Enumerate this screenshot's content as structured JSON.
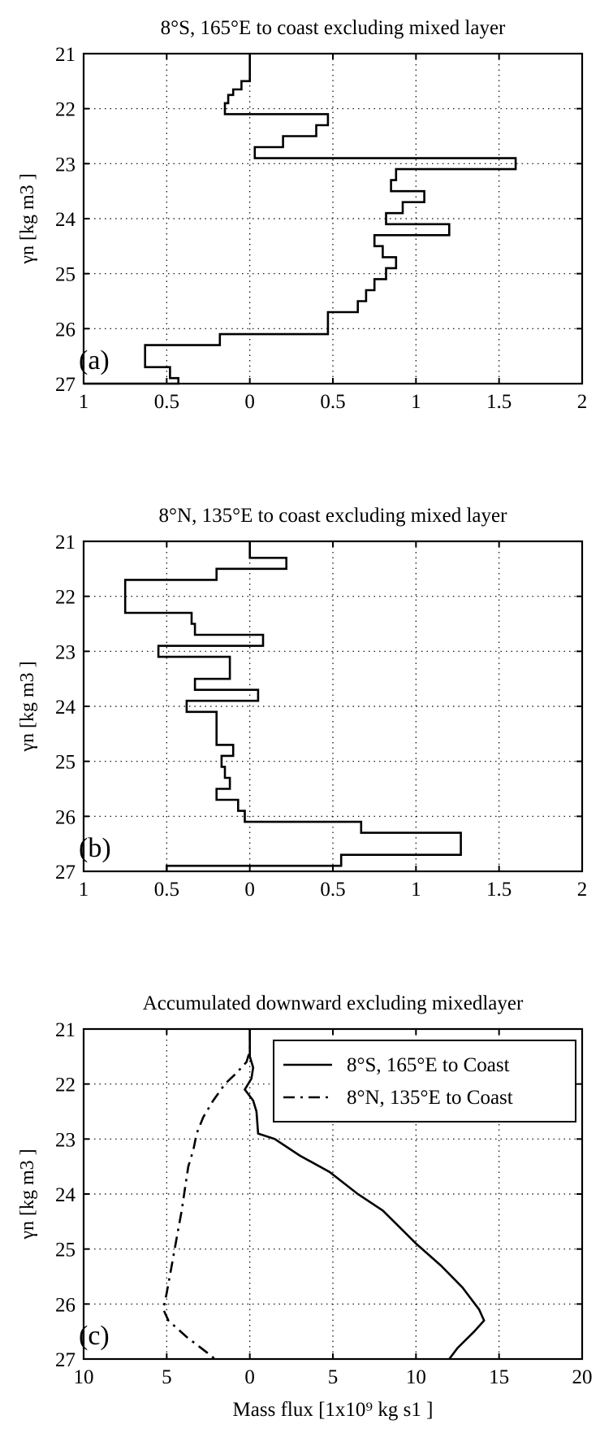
{
  "chart_data": [
    {
      "type": "line",
      "panel_label": "(a)",
      "title": "8°S, 165°E to coast excluding mixed layer",
      "xlabel": "",
      "ylabel": "γn [kg m3 ]",
      "xlim": [
        -1,
        2
      ],
      "ylim": [
        21,
        27
      ],
      "x_ticks": [
        -1,
        -0.5,
        0,
        0.5,
        1,
        1.5,
        2
      ],
      "x_tick_labels": [
        "1",
        "0.5",
        "0",
        "0.5",
        "1",
        "1.5",
        "2"
      ],
      "y_ticks": [
        21,
        22,
        23,
        24,
        25,
        26,
        27
      ],
      "y_tick_labels": [
        "21",
        "22",
        "23",
        "24",
        "25",
        "26",
        "27"
      ],
      "grid": true,
      "legend": null,
      "series": [
        {
          "style": "step",
          "points": [
            [
              0.0,
              21.0
            ],
            [
              0.0,
              21.5
            ],
            [
              -0.05,
              21.5
            ],
            [
              -0.05,
              21.65
            ],
            [
              -0.1,
              21.65
            ],
            [
              -0.1,
              21.75
            ],
            [
              -0.13,
              21.75
            ],
            [
              -0.13,
              21.9
            ],
            [
              -0.15,
              21.9
            ],
            [
              -0.15,
              22.1
            ],
            [
              0.47,
              22.1
            ],
            [
              0.47,
              22.3
            ],
            [
              0.4,
              22.3
            ],
            [
              0.4,
              22.5
            ],
            [
              0.2,
              22.5
            ],
            [
              0.2,
              22.7
            ],
            [
              0.03,
              22.7
            ],
            [
              0.03,
              22.9
            ],
            [
              1.6,
              22.9
            ],
            [
              1.6,
              23.1
            ],
            [
              0.88,
              23.1
            ],
            [
              0.88,
              23.3
            ],
            [
              0.85,
              23.3
            ],
            [
              0.85,
              23.5
            ],
            [
              1.05,
              23.5
            ],
            [
              1.05,
              23.7
            ],
            [
              0.92,
              23.7
            ],
            [
              0.92,
              23.9
            ],
            [
              0.82,
              23.9
            ],
            [
              0.82,
              24.1
            ],
            [
              1.2,
              24.1
            ],
            [
              1.2,
              24.3
            ],
            [
              0.75,
              24.3
            ],
            [
              0.75,
              24.5
            ],
            [
              0.8,
              24.5
            ],
            [
              0.8,
              24.7
            ],
            [
              0.88,
              24.7
            ],
            [
              0.88,
              24.9
            ],
            [
              0.82,
              24.9
            ],
            [
              0.82,
              25.1
            ],
            [
              0.75,
              25.1
            ],
            [
              0.75,
              25.3
            ],
            [
              0.7,
              25.3
            ],
            [
              0.7,
              25.5
            ],
            [
              0.65,
              25.5
            ],
            [
              0.65,
              25.7
            ],
            [
              0.47,
              25.7
            ],
            [
              0.47,
              26.1
            ],
            [
              -0.18,
              26.1
            ],
            [
              -0.18,
              26.3
            ],
            [
              -0.63,
              26.3
            ],
            [
              -0.63,
              26.7
            ],
            [
              -0.48,
              26.7
            ],
            [
              -0.48,
              26.9
            ],
            [
              -0.43,
              26.9
            ],
            [
              -0.43,
              27.0
            ],
            [
              -1.0,
              27.0
            ]
          ]
        }
      ]
    },
    {
      "type": "line",
      "panel_label": "(b)",
      "title": "8°N, 135°E to coast excluding mixed layer",
      "xlabel": "",
      "ylabel": "γn [kg m3 ]",
      "xlim": [
        -1,
        2
      ],
      "ylim": [
        21,
        27
      ],
      "x_ticks": [
        -1,
        -0.5,
        0,
        0.5,
        1,
        1.5,
        2
      ],
      "x_tick_labels": [
        "1",
        "0.5",
        "0",
        "0.5",
        "1",
        "1.5",
        "2"
      ],
      "y_ticks": [
        21,
        22,
        23,
        24,
        25,
        26,
        27
      ],
      "y_tick_labels": [
        "21",
        "22",
        "23",
        "24",
        "25",
        "26",
        "27"
      ],
      "grid": true,
      "legend": null,
      "series": [
        {
          "style": "step",
          "points": [
            [
              0.0,
              21.0
            ],
            [
              0.0,
              21.3
            ],
            [
              0.22,
              21.3
            ],
            [
              0.22,
              21.5
            ],
            [
              -0.2,
              21.5
            ],
            [
              -0.2,
              21.7
            ],
            [
              -0.75,
              21.7
            ],
            [
              -0.75,
              22.3
            ],
            [
              -0.35,
              22.3
            ],
            [
              -0.35,
              22.5
            ],
            [
              -0.33,
              22.5
            ],
            [
              -0.33,
              22.7
            ],
            [
              0.08,
              22.7
            ],
            [
              0.08,
              22.9
            ],
            [
              -0.55,
              22.9
            ],
            [
              -0.55,
              23.1
            ],
            [
              -0.12,
              23.1
            ],
            [
              -0.12,
              23.5
            ],
            [
              -0.33,
              23.5
            ],
            [
              -0.33,
              23.7
            ],
            [
              0.05,
              23.7
            ],
            [
              0.05,
              23.9
            ],
            [
              -0.38,
              23.9
            ],
            [
              -0.38,
              24.1
            ],
            [
              -0.2,
              24.1
            ],
            [
              -0.2,
              24.7
            ],
            [
              -0.1,
              24.7
            ],
            [
              -0.1,
              24.9
            ],
            [
              -0.17,
              24.9
            ],
            [
              -0.17,
              25.1
            ],
            [
              -0.15,
              25.1
            ],
            [
              -0.15,
              25.3
            ],
            [
              -0.12,
              25.3
            ],
            [
              -0.12,
              25.5
            ],
            [
              -0.2,
              25.5
            ],
            [
              -0.2,
              25.7
            ],
            [
              -0.07,
              25.7
            ],
            [
              -0.07,
              25.9
            ],
            [
              -0.03,
              25.9
            ],
            [
              -0.03,
              26.1
            ],
            [
              0.67,
              26.1
            ],
            [
              0.67,
              26.3
            ],
            [
              1.27,
              26.3
            ],
            [
              1.27,
              26.7
            ],
            [
              0.55,
              26.7
            ],
            [
              0.55,
              26.9
            ],
            [
              -0.5,
              26.9
            ],
            [
              -0.5,
              27.0
            ]
          ]
        }
      ]
    },
    {
      "type": "line",
      "panel_label": "(c)",
      "title": "Accumulated downward excluding mixedlayer",
      "xlabel": "Mass flux [1x10⁹ kg s1 ]",
      "ylabel": "γn [kg m3 ]",
      "xlim": [
        -10,
        20
      ],
      "ylim": [
        21,
        27
      ],
      "x_ticks": [
        -10,
        -5,
        0,
        5,
        10,
        15,
        20
      ],
      "x_tick_labels": [
        "10",
        "5",
        "0",
        "5",
        "10",
        "15",
        "20"
      ],
      "y_ticks": [
        21,
        22,
        23,
        24,
        25,
        26,
        27
      ],
      "y_tick_labels": [
        "21",
        "22",
        "23",
        "24",
        "25",
        "26",
        "27"
      ],
      "grid": true,
      "legend": "top-right",
      "series": [
        {
          "name": "8°S, 165°E to Coast",
          "style": "solid",
          "points": [
            [
              0.0,
              21.0
            ],
            [
              0.0,
              21.5
            ],
            [
              0.2,
              21.7
            ],
            [
              0.1,
              21.9
            ],
            [
              -0.3,
              22.1
            ],
            [
              0.2,
              22.3
            ],
            [
              0.4,
              22.5
            ],
            [
              0.5,
              22.9
            ],
            [
              1.5,
              23.0
            ],
            [
              3.0,
              23.3
            ],
            [
              4.8,
              23.6
            ],
            [
              6.5,
              24.0
            ],
            [
              8.0,
              24.3
            ],
            [
              9.0,
              24.6
            ],
            [
              10.0,
              24.9
            ],
            [
              11.5,
              25.3
            ],
            [
              12.8,
              25.7
            ],
            [
              13.8,
              26.1
            ],
            [
              14.1,
              26.3
            ],
            [
              13.5,
              26.5
            ],
            [
              12.5,
              26.8
            ],
            [
              12.0,
              27.0
            ]
          ]
        },
        {
          "name": "8°N, 135°E to Coast",
          "style": "dashdot",
          "points": [
            [
              0.0,
              21.0
            ],
            [
              0.0,
              21.4
            ],
            [
              -0.2,
              21.6
            ],
            [
              -0.8,
              21.8
            ],
            [
              -1.5,
              22.0
            ],
            [
              -2.2,
              22.3
            ],
            [
              -2.8,
              22.6
            ],
            [
              -3.2,
              22.9
            ],
            [
              -3.4,
              23.2
            ],
            [
              -3.7,
              23.5
            ],
            [
              -3.9,
              23.9
            ],
            [
              -4.1,
              24.3
            ],
            [
              -4.4,
              24.8
            ],
            [
              -4.7,
              25.3
            ],
            [
              -5.0,
              25.8
            ],
            [
              -5.2,
              26.1
            ],
            [
              -4.9,
              26.3
            ],
            [
              -3.8,
              26.6
            ],
            [
              -2.5,
              26.9
            ],
            [
              -2.1,
              27.0
            ]
          ]
        }
      ]
    }
  ]
}
